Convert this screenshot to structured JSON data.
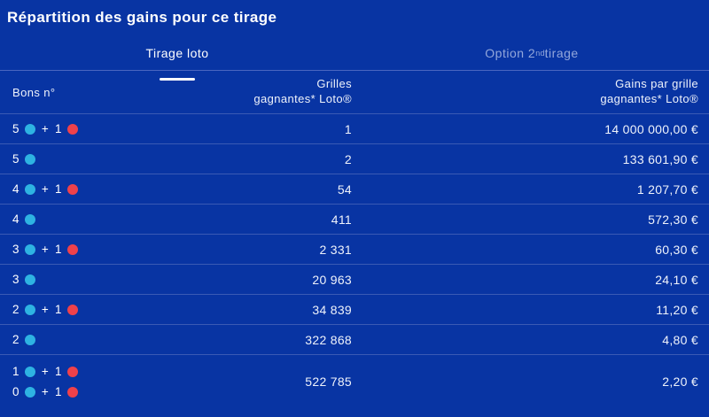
{
  "page": {
    "title": "Répartition des gains pour ce tirage"
  },
  "tabs": {
    "loto": {
      "label": "Tirage loto",
      "active": true
    },
    "second": {
      "prefix": "Option 2",
      "sup": "nd",
      "suffix": " tirage",
      "active": false
    }
  },
  "table": {
    "headers": {
      "col1": "Bons n°",
      "col2_line1": "Grilles",
      "col2_line2": "gagnantes* Loto®",
      "col3_line1": "Gains par grille",
      "col3_line2": "gagnantes* Loto®"
    },
    "rows": [
      {
        "combo_lines": [
          [
            {
              "n": "5",
              "c": "blue"
            },
            {
              "n": "1",
              "c": "red"
            }
          ]
        ],
        "grids": "1",
        "gain": "14 000 000,00 €"
      },
      {
        "combo_lines": [
          [
            {
              "n": "5",
              "c": "blue"
            }
          ]
        ],
        "grids": "2",
        "gain": "133 601,90 €"
      },
      {
        "combo_lines": [
          [
            {
              "n": "4",
              "c": "blue"
            },
            {
              "n": "1",
              "c": "red"
            }
          ]
        ],
        "grids": "54",
        "gain": "1 207,70 €"
      },
      {
        "combo_lines": [
          [
            {
              "n": "4",
              "c": "blue"
            }
          ]
        ],
        "grids": "411",
        "gain": "572,30 €"
      },
      {
        "combo_lines": [
          [
            {
              "n": "3",
              "c": "blue"
            },
            {
              "n": "1",
              "c": "red"
            }
          ]
        ],
        "grids": "2 331",
        "gain": "60,30 €"
      },
      {
        "combo_lines": [
          [
            {
              "n": "3",
              "c": "blue"
            }
          ]
        ],
        "grids": "20 963",
        "gain": "24,10 €"
      },
      {
        "combo_lines": [
          [
            {
              "n": "2",
              "c": "blue"
            },
            {
              "n": "1",
              "c": "red"
            }
          ]
        ],
        "grids": "34 839",
        "gain": "11,20 €"
      },
      {
        "combo_lines": [
          [
            {
              "n": "2",
              "c": "blue"
            }
          ]
        ],
        "grids": "322 868",
        "gain": "4,80 €"
      },
      {
        "combo_lines": [
          [
            {
              "n": "1",
              "c": "blue"
            },
            {
              "n": "1",
              "c": "red"
            }
          ],
          [
            {
              "n": "0",
              "c": "blue"
            },
            {
              "n": "1",
              "c": "red"
            }
          ]
        ],
        "grids": "522 785",
        "gain": "2,20 €"
      }
    ]
  },
  "icons": {
    "ball_blue": "blue-ball-icon",
    "ball_red": "red-ball-icon"
  },
  "colors": {
    "background": "#0834a3",
    "separator": "#3a5ab4",
    "tab_baseline": "#4a66c0",
    "tab_inactive_text": "#93a7db",
    "active_tab_underline": "#ffffff",
    "ball_blue": "#2eb3e2",
    "ball_red": "#ef414b",
    "text": "#eef2fb"
  }
}
